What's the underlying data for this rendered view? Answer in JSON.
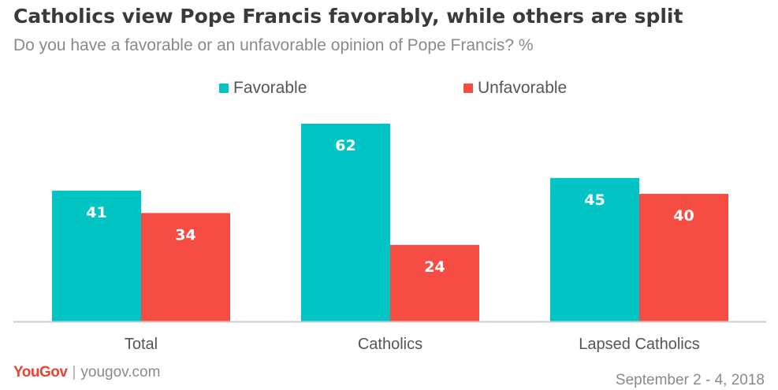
{
  "header": {
    "title": "Catholics view Pope Francis favorably, while others are split",
    "subtitle": "Do you have a favorable or an unfavorable opinion of Pope Francis? %"
  },
  "legend": [
    {
      "label": "Favorable",
      "color": "#00c5c4"
    },
    {
      "label": "Unfavorable",
      "color": "#f54c44"
    }
  ],
  "footer": {
    "brand": "YouGov",
    "url": "yougov.com",
    "date": "September 2 - 4, 2018"
  },
  "chart_data": {
    "type": "bar",
    "title": "Catholics view Pope Francis favorably, while others are split",
    "subtitle": "Do you have a favorable or an unfavorable opinion of Pope Francis? %",
    "categories": [
      "Total",
      "Catholics",
      "Lapsed Catholics"
    ],
    "series": [
      {
        "name": "Favorable",
        "color": "#00c5c4",
        "values": [
          41,
          62,
          45
        ]
      },
      {
        "name": "Unfavorable",
        "color": "#f54c44",
        "values": [
          34,
          24,
          40
        ]
      }
    ],
    "ylim": [
      0,
      62
    ],
    "grid": false,
    "legend_position": "top-center",
    "data_labels": true
  }
}
